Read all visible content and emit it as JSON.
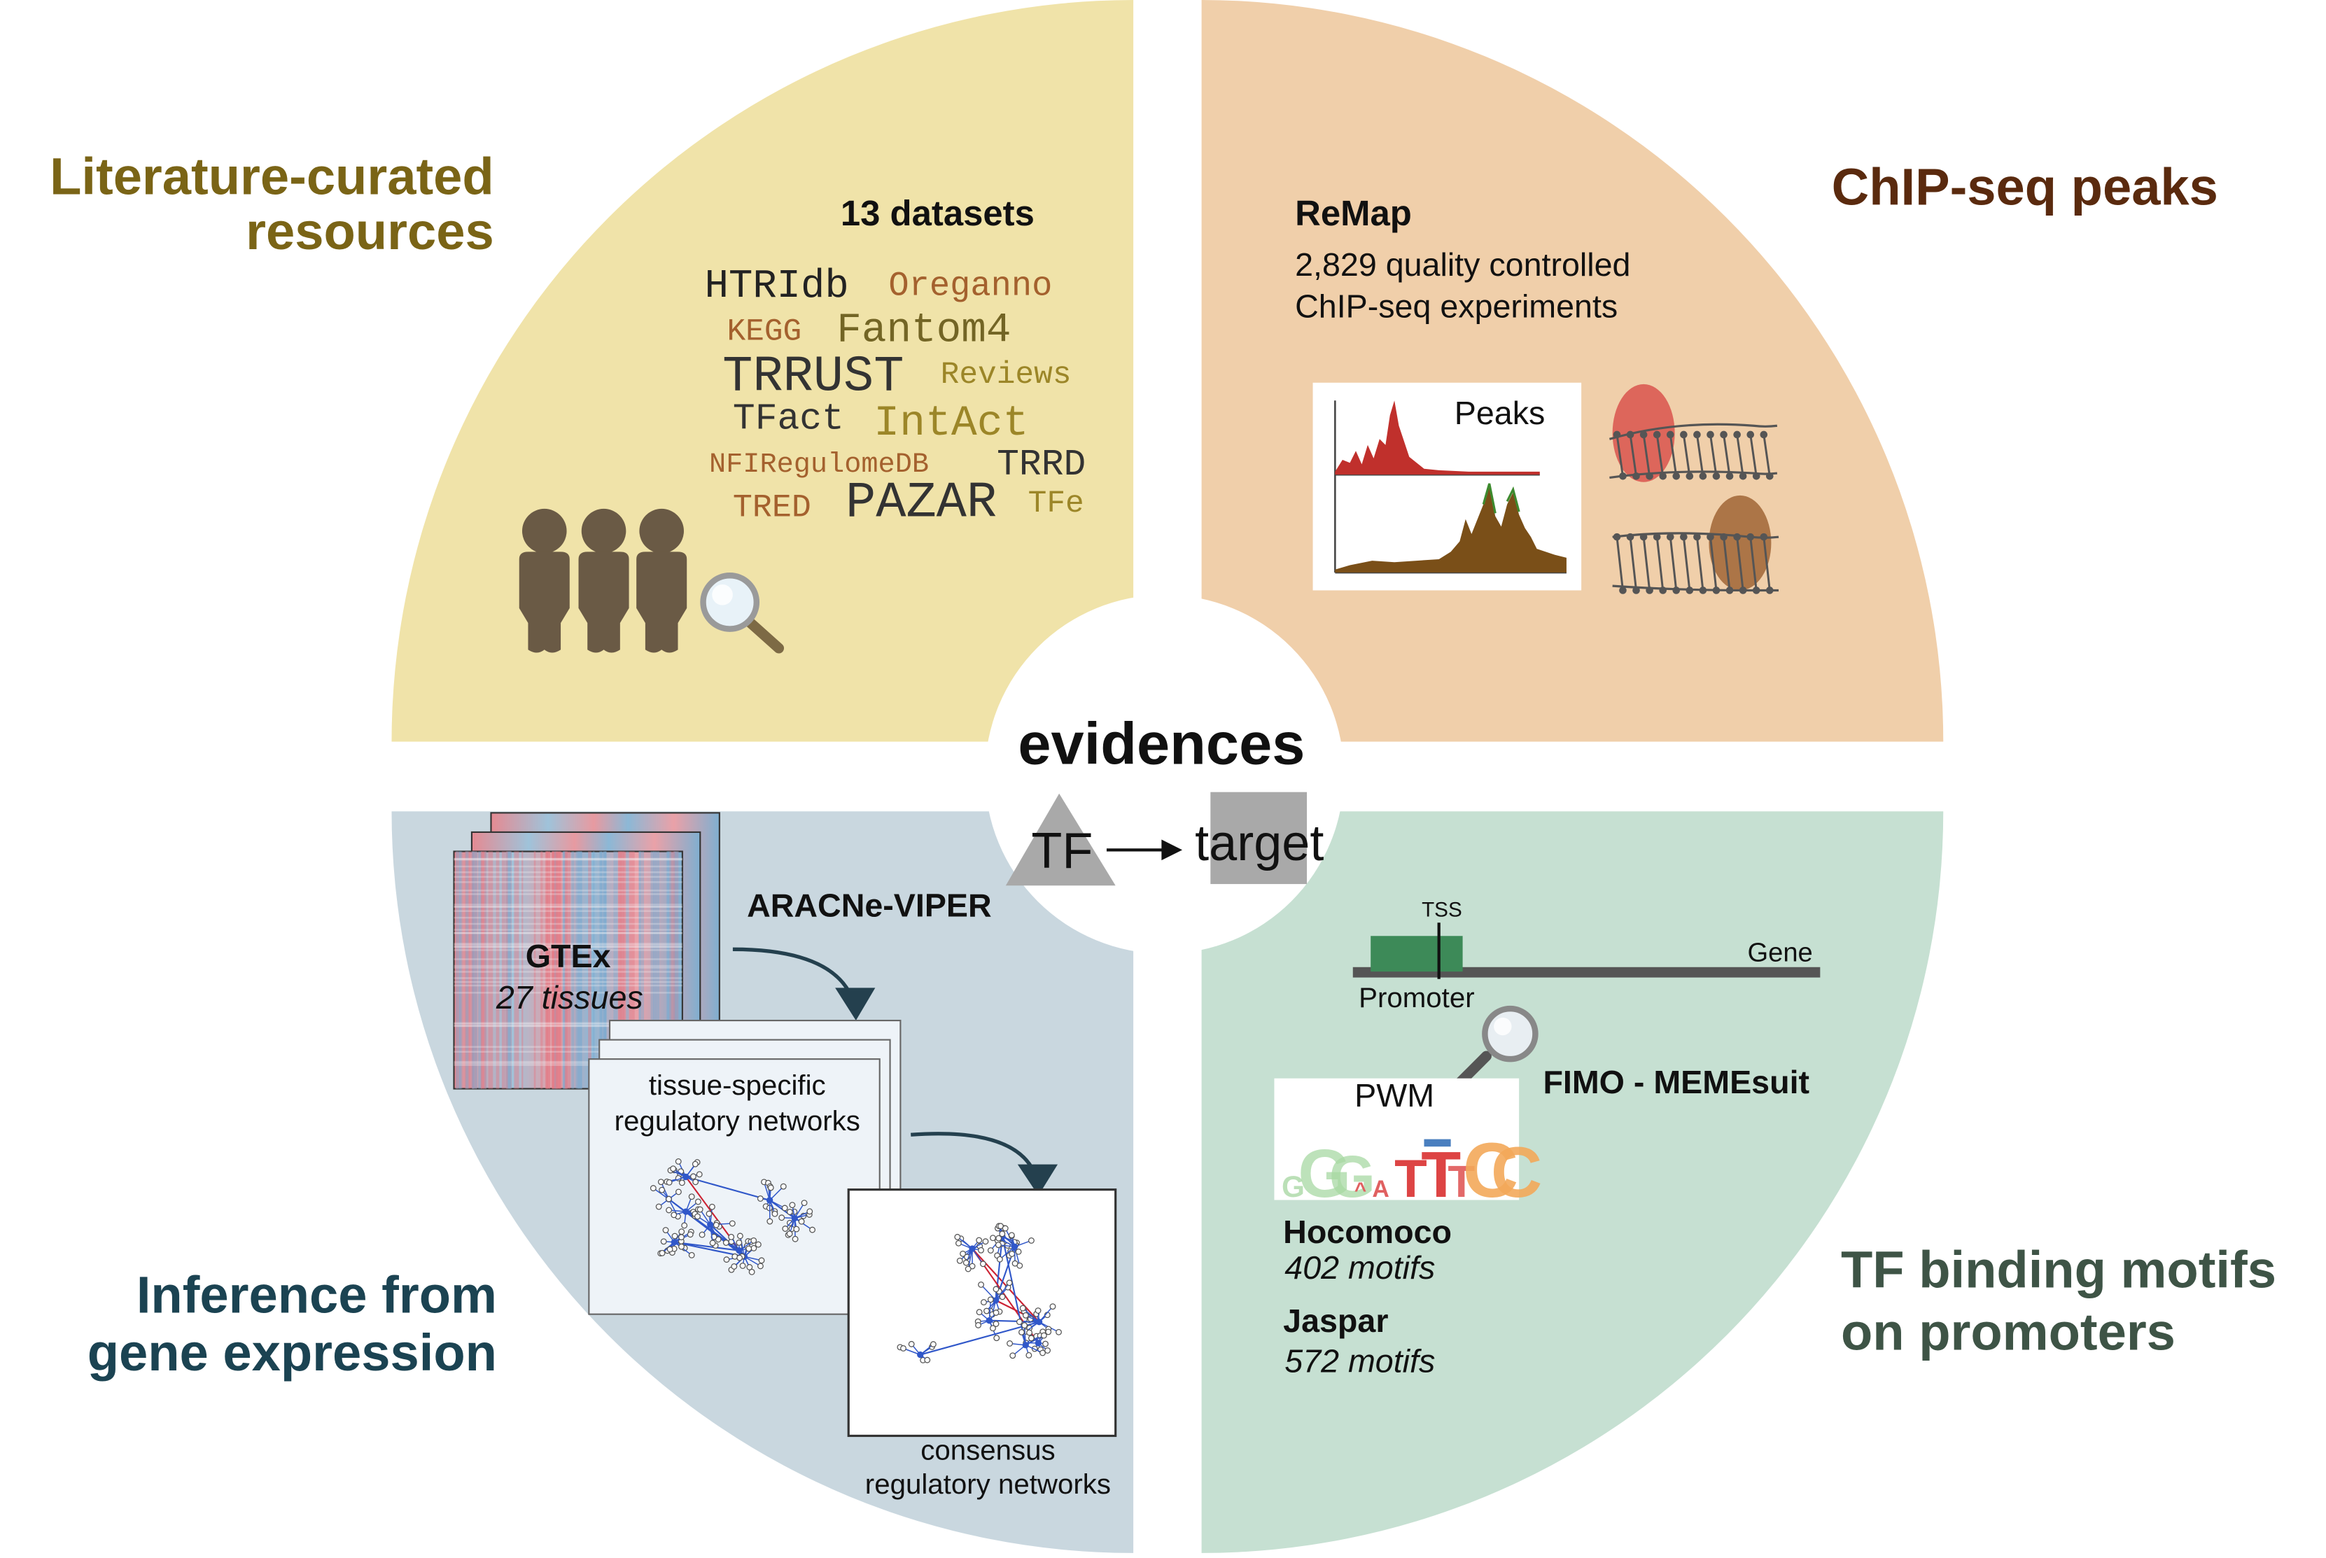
{
  "colors": {
    "q1": "#f0e3a9",
    "q2": "#f0cfaa",
    "q3": "#c9d7df",
    "q4": "#c6e0d2",
    "q1_title": "#7a6416",
    "q2_title": "#5a2a0e",
    "q3_title": "#1b4352",
    "q4_title": "#3e5446",
    "tf_shape": "#a9a9a9",
    "peak_red": "#c0302c",
    "peak_brown": "#7a4f18",
    "network_blue": "#3057c9"
  },
  "center": {
    "title": "evidences",
    "tf": "TF",
    "target": "target"
  },
  "q1": {
    "title_line1": "Literature-curated",
    "title_line2": "resources",
    "datasets": "13 datasets",
    "words": {
      "htridb": "HTRIdb",
      "oreganno": "Oreganno",
      "kegg": "KEGG",
      "fantom4": "Fantom4",
      "trrust": "TRRUST",
      "reviews": "Reviews",
      "tfact": "TFact",
      "intact": "IntAct",
      "nfiregulomedb": "NFIRegulomeDB",
      "trrd": "TRRD",
      "tred": "TRED",
      "pazar": "PAZAR",
      "tfe": "TFe"
    },
    "icons": [
      "people-icon",
      "magnifier-icon"
    ]
  },
  "q2": {
    "title": "ChIP-seq peaks",
    "remap": "ReMap",
    "desc_line1": "2,829 quality controlled",
    "desc_line2": "ChIP-seq experiments",
    "peaks_label": "Peaks",
    "icons": [
      "peak-track-icon",
      "dna-tf-binding-icon"
    ]
  },
  "q3": {
    "title_line1": "Inference from",
    "title_line2": "gene expression",
    "gtex": "GTEx",
    "tissues": "27 tissues",
    "aracne": "ARACNe-VIPER",
    "tissue_net_line1": "tissue-specific",
    "tissue_net_line2": "regulatory networks",
    "consensus_line1": "consensus",
    "consensus_line2": "regulatory networks",
    "icons": [
      "heatmap-icon",
      "network-icon",
      "arrow-icon"
    ]
  },
  "q4": {
    "title_line1": "TF binding motifs",
    "title_line2": "on promoters",
    "tss": "TSS",
    "gene": "Gene",
    "promoter": "Promoter",
    "fimo": "FIMO - MEMEsuit",
    "pwm": "PWM",
    "hocomoco": "Hocomoco",
    "hocomoco_motifs": "402 motifs",
    "jaspar": "Jaspar",
    "jaspar_motifs": "572 motifs",
    "logo_letters": "GGGATTTCC",
    "icons": [
      "gene-track-icon",
      "magnifier-icon",
      "sequence-logo-icon"
    ]
  }
}
